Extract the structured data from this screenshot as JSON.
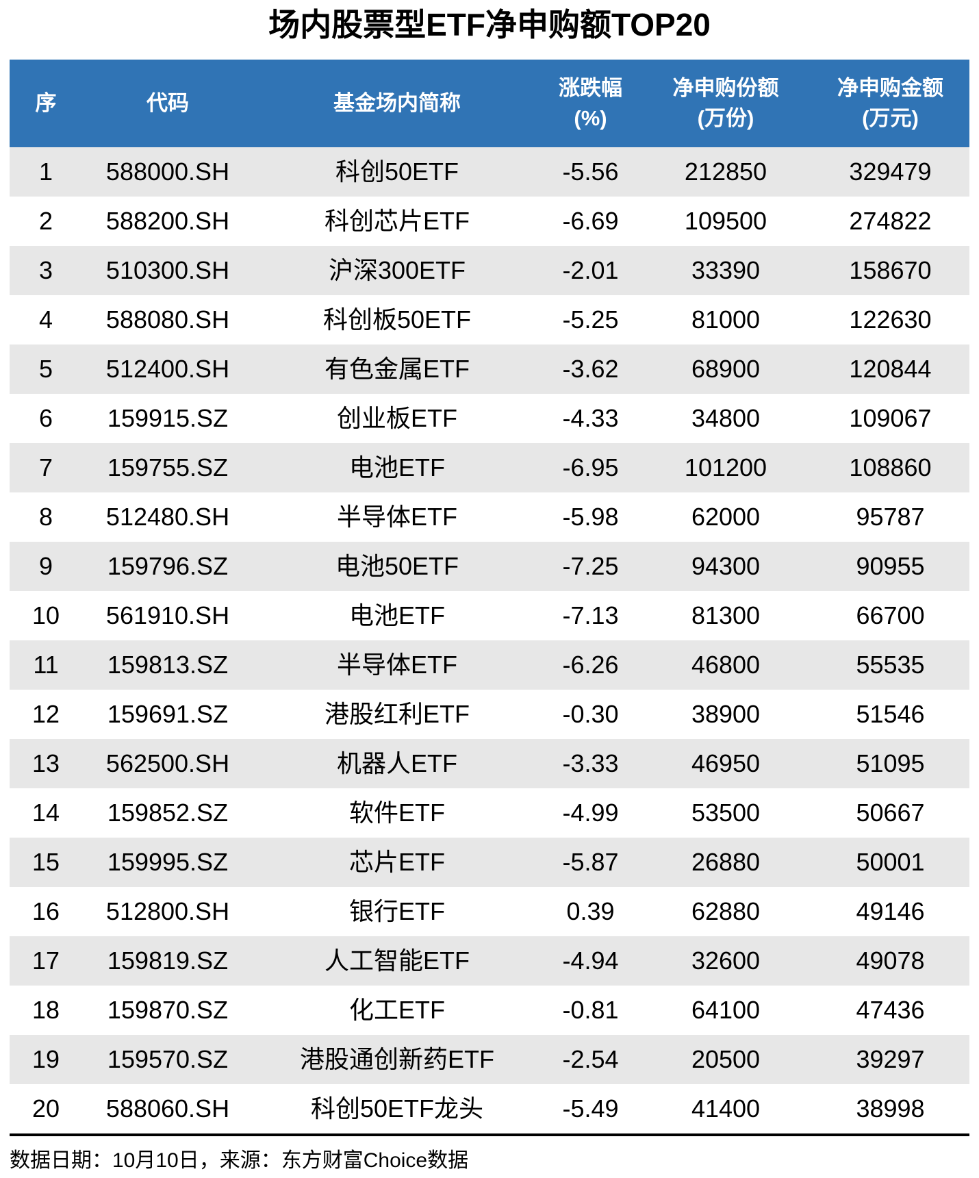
{
  "title": "场内股票型ETF净申购额TOP20",
  "header_columns": [
    {
      "line1": "序",
      "line2": ""
    },
    {
      "line1": "代码",
      "line2": ""
    },
    {
      "line1": "基金场内简称",
      "line2": ""
    },
    {
      "line1": "涨跌幅",
      "line2": "(%)"
    },
    {
      "line1": "净申购份额",
      "line2": "(万份)"
    },
    {
      "line1": "净申购金额",
      "line2": "(万元)"
    }
  ],
  "footer_text": "数据日期：10月10日，来源：东方财富Choice数据",
  "colors": {
    "header_bg": "#3074B5",
    "header_text": "#FFFFFF",
    "row_alt_bg": "#E7E7E7",
    "row_bg": "#FFFFFF",
    "text": "#000000",
    "divider": "#000000"
  },
  "chart_data": {
    "type": "table",
    "title": "场内股票型ETF净申购额TOP20",
    "columns": [
      "序",
      "代码",
      "基金场内简称",
      "涨跌幅(%)",
      "净申购份额(万份)",
      "净申购金额(万元)"
    ],
    "rows": [
      [
        "1",
        "588000.SH",
        "科创50ETF",
        "-5.56",
        "212850",
        "329479"
      ],
      [
        "2",
        "588200.SH",
        "科创芯片ETF",
        "-6.69",
        "109500",
        "274822"
      ],
      [
        "3",
        "510300.SH",
        "沪深300ETF",
        "-2.01",
        "33390",
        "158670"
      ],
      [
        "4",
        "588080.SH",
        "科创板50ETF",
        "-5.25",
        "81000",
        "122630"
      ],
      [
        "5",
        "512400.SH",
        "有色金属ETF",
        "-3.62",
        "68900",
        "120844"
      ],
      [
        "6",
        "159915.SZ",
        "创业板ETF",
        "-4.33",
        "34800",
        "109067"
      ],
      [
        "7",
        "159755.SZ",
        "电池ETF",
        "-6.95",
        "101200",
        "108860"
      ],
      [
        "8",
        "512480.SH",
        "半导体ETF",
        "-5.98",
        "62000",
        "95787"
      ],
      [
        "9",
        "159796.SZ",
        "电池50ETF",
        "-7.25",
        "94300",
        "90955"
      ],
      [
        "10",
        "561910.SH",
        "电池ETF",
        "-7.13",
        "81300",
        "66700"
      ],
      [
        "11",
        "159813.SZ",
        "半导体ETF",
        "-6.26",
        "46800",
        "55535"
      ],
      [
        "12",
        "159691.SZ",
        "港股红利ETF",
        "-0.30",
        "38900",
        "51546"
      ],
      [
        "13",
        "562500.SH",
        "机器人ETF",
        "-3.33",
        "46950",
        "51095"
      ],
      [
        "14",
        "159852.SZ",
        "软件ETF",
        "-4.99",
        "53500",
        "50667"
      ],
      [
        "15",
        "159995.SZ",
        "芯片ETF",
        "-5.87",
        "26880",
        "50001"
      ],
      [
        "16",
        "512800.SH",
        "银行ETF",
        "0.39",
        "62880",
        "49146"
      ],
      [
        "17",
        "159819.SZ",
        "人工智能ETF",
        "-4.94",
        "32600",
        "49078"
      ],
      [
        "18",
        "159870.SZ",
        "化工ETF",
        "-0.81",
        "64100",
        "47436"
      ],
      [
        "19",
        "159570.SZ",
        "港股通创新药ETF",
        "-2.54",
        "20500",
        "39297"
      ],
      [
        "20",
        "588060.SH",
        "科创50ETF龙头",
        "-5.49",
        "41400",
        "38998"
      ]
    ],
    "source": "数据日期：10月10日，来源：东方财富Choice数据",
    "layout": {
      "grid": false,
      "alternating_rows": true,
      "header_position": "top"
    }
  }
}
